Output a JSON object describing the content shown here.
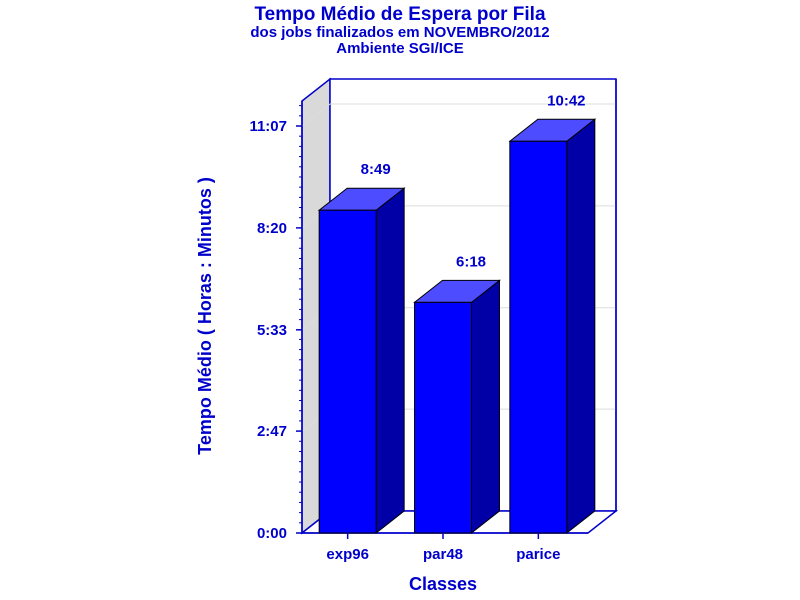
{
  "chart_data": {
    "type": "bar",
    "title": "Tempo Médio de Espera por Fila",
    "subtitle": [
      "dos jobs finalizados em NOVEMBRO/2012",
      "Ambiente SGI/ICE"
    ],
    "xlabel": "Classes",
    "ylabel": "Tempo Médio ( Horas : Minutos )",
    "categories": [
      "exp96",
      "par48",
      "parice"
    ],
    "values": [
      529,
      378,
      642
    ],
    "value_labels": [
      "8:49",
      "6:18",
      "10:42"
    ],
    "y_ticks": [
      0,
      167,
      333,
      500,
      667
    ],
    "y_tick_labels": [
      "0:00",
      "2:47",
      "5:33",
      "8:20",
      "11:07"
    ],
    "ylim": [
      0,
      667
    ],
    "grid": true,
    "style": "3d",
    "colors": {
      "bar_front": "#0000ff",
      "bar_side": "#0000a6",
      "bar_top": "#4d4dff",
      "text": "#0000cc",
      "axis": "#0000cc",
      "wall": "#d9d9d9",
      "grid": "#dddddd"
    }
  }
}
